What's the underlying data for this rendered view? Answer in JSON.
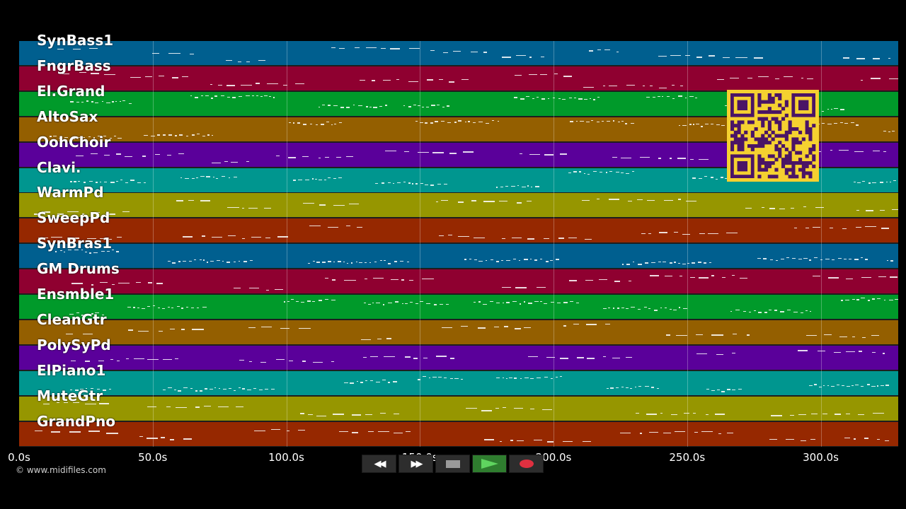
{
  "tracks": [
    {
      "name": "SynBass1",
      "color": "#005f8f"
    },
    {
      "name": "FngrBass",
      "color": "#8f0030"
    },
    {
      "name": "El.Grand",
      "color": "#009a2a"
    },
    {
      "name": "AltoSax",
      "color": "#945f00"
    },
    {
      "name": "OohChoir",
      "color": "#5a009a"
    },
    {
      "name": "Clavi.",
      "color": "#00968f"
    },
    {
      "name": "WarmPd",
      "color": "#969600"
    },
    {
      "name": "SweepPd",
      "color": "#962800"
    },
    {
      "name": "SynBras1",
      "color": "#005f8f"
    },
    {
      "name": "GM Drums",
      "color": "#8f0030"
    },
    {
      "name": "Ensmble1",
      "color": "#009a2a"
    },
    {
      "name": "CleanGtr",
      "color": "#945f00"
    },
    {
      "name": "PolySyPd",
      "color": "#5a009a"
    },
    {
      "name": "ElPiano1",
      "color": "#00968f"
    },
    {
      "name": "MuteGtr",
      "color": "#969600"
    },
    {
      "name": "GrandPno",
      "color": "#962800"
    }
  ],
  "timeline": {
    "ticks": [
      {
        "label": "0.0s",
        "value": 0
      },
      {
        "label": "50.0s",
        "value": 50
      },
      {
        "label": "100.0s",
        "value": 100
      },
      {
        "label": "150.0s",
        "value": 150
      },
      {
        "label": "200.0s",
        "value": 200
      },
      {
        "label": "250.0s",
        "value": 250
      },
      {
        "label": "300.0s",
        "value": 300
      }
    ],
    "range": [
      0,
      329
    ]
  },
  "copyright": "© www.midifiles.com",
  "transport": {
    "rewind_icon": "rewind-icon",
    "forward_icon": "fast-forward-icon",
    "stop_icon": "stop-icon",
    "play_icon": "play-icon",
    "record_icon": "record-icon"
  },
  "qr_icon": "qr-code-icon"
}
